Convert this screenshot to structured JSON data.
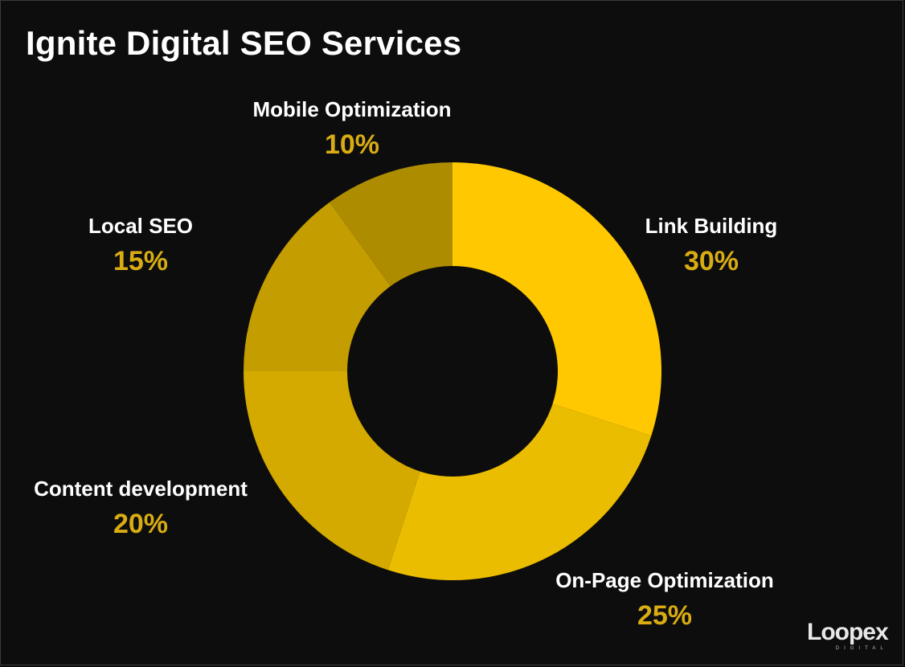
{
  "header": {
    "title": "Ignite Digital SEO Services"
  },
  "chart_data": {
    "type": "pie",
    "donut": true,
    "title": "Ignite Digital SEO Services",
    "slices": [
      {
        "label": "Link Building",
        "value": 30,
        "display": "30%",
        "color": "#ffc800"
      },
      {
        "label": "On-Page Optimization",
        "value": 25,
        "display": "25%",
        "color": "#ebbd00"
      },
      {
        "label": "Content development",
        "value": 20,
        "display": "20%",
        "color": "#d4aa00"
      },
      {
        "label": "Local SEO",
        "value": 15,
        "display": "15%",
        "color": "#c49d00"
      },
      {
        "label": "Mobile Optimization",
        "value": 10,
        "display": "10%",
        "color": "#ae8c00"
      }
    ],
    "value_label_color": "#d9ad12"
  },
  "branding": {
    "logo_text": "Loopex",
    "logo_subtext": "DIGITAL"
  }
}
